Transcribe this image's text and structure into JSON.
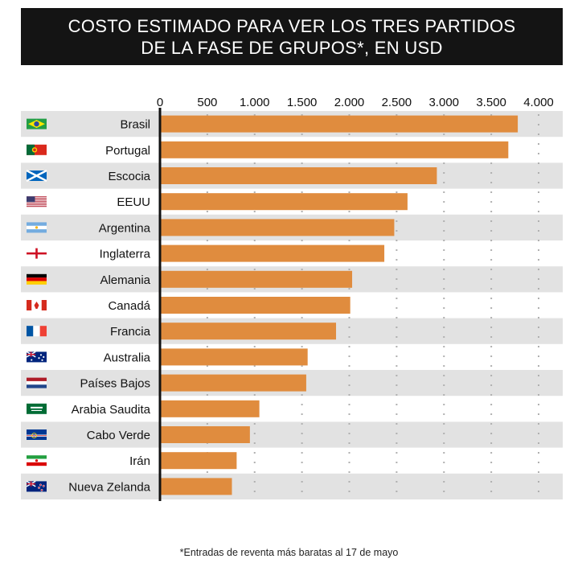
{
  "title": {
    "line1": "COSTO ESTIMADO PARA VER LOS TRES PARTIDOS",
    "line2": "DE LA FASE DE GRUPOS*, EN USD"
  },
  "footnote": "*Entradas de reventa más baratas al 17 de mayo",
  "colors": {
    "bar": "#e08c3e",
    "stripe": "#e2e2e2",
    "axis": "#111111",
    "grid": "#b0b0b0",
    "title_bg": "#141414"
  },
  "chart_data": {
    "type": "bar",
    "orientation": "horizontal",
    "title": "COSTO ESTIMADO PARA VER LOS TRES PARTIDOS DE LA FASE DE GRUPOS*, EN USD",
    "xlabel": "",
    "ylabel": "",
    "xlim": [
      0,
      4000
    ],
    "x_ticks": [
      0,
      500,
      1000,
      1500,
      2000,
      2500,
      3000,
      3500,
      4000
    ],
    "x_tick_labels": [
      "0",
      "500",
      "1.000",
      "1.500",
      "2.000",
      "2.500",
      "3.000",
      "3.500",
      "4.000"
    ],
    "grid": "vertical-dotted",
    "categories": [
      "Brasil",
      "Portugal",
      "Escocia",
      "EEUU",
      "Argentina",
      "Inglaterra",
      "Alemania",
      "Canadá",
      "Francia",
      "Australia",
      "Países Bajos",
      "Arabia Saudita",
      "Cabo Verde",
      "Irán",
      "Nueva Zelanda"
    ],
    "flags": [
      "brazil-flag-icon",
      "portugal-flag-icon",
      "scotland-flag-icon",
      "usa-flag-icon",
      "argentina-flag-icon",
      "england-flag-icon",
      "germany-flag-icon",
      "canada-flag-icon",
      "france-flag-icon",
      "australia-flag-icon",
      "netherlands-flag-icon",
      "saudi-arabia-flag-icon",
      "cape-verde-flag-icon",
      "iran-flag-icon",
      "new-zealand-flag-icon"
    ],
    "values": [
      3780,
      3680,
      2925,
      2615,
      2475,
      2370,
      2030,
      2010,
      1860,
      1560,
      1545,
      1050,
      950,
      810,
      760
    ]
  }
}
